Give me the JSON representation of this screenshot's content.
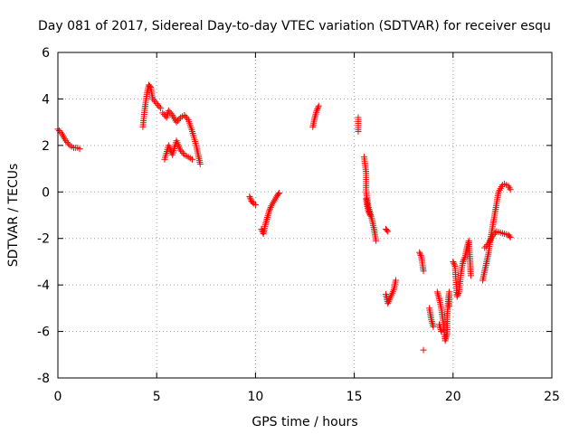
{
  "chart_data": {
    "type": "scatter",
    "title": "Day 081 of 2017, Sidereal Day-to-day VTEC variation (SDTVAR) for receiver esqu",
    "xlabel": "GPS time / hours",
    "ylabel": "SDTVAR / TECUs",
    "xlim": [
      0,
      25
    ],
    "ylim": [
      -8,
      6
    ],
    "x_ticks": [
      "0",
      "5",
      "10",
      "15",
      "20",
      "25"
    ],
    "y_ticks": [
      "-8",
      "-6",
      "-4",
      "-2",
      "0",
      "2",
      "4",
      "6"
    ],
    "grid": true,
    "marker": "plus",
    "color": "#ff0000",
    "segments": [
      [
        [
          0.0,
          2.7
        ],
        [
          0.2,
          2.5
        ],
        [
          0.4,
          2.2
        ],
        [
          0.6,
          2.0
        ],
        [
          0.8,
          1.9
        ],
        [
          1.0,
          1.9
        ],
        [
          1.1,
          1.85
        ]
      ],
      [
        [
          4.3,
          2.8
        ],
        [
          4.4,
          3.6
        ],
        [
          4.5,
          4.2
        ],
        [
          4.6,
          4.6
        ],
        [
          4.7,
          4.5
        ],
        [
          4.8,
          4.0
        ],
        [
          5.0,
          3.8
        ],
        [
          5.2,
          3.6
        ]
      ],
      [
        [
          5.3,
          3.4
        ],
        [
          5.5,
          3.2
        ],
        [
          5.6,
          3.5
        ],
        [
          5.8,
          3.3
        ],
        [
          6.0,
          3.0
        ],
        [
          6.2,
          3.2
        ],
        [
          6.4,
          3.3
        ],
        [
          6.6,
          3.1
        ],
        [
          6.8,
          2.6
        ],
        [
          7.0,
          2.0
        ],
        [
          7.1,
          1.6
        ],
        [
          7.2,
          1.2
        ]
      ],
      [
        [
          5.4,
          1.4
        ],
        [
          5.6,
          2.0
        ],
        [
          5.8,
          1.6
        ],
        [
          6.0,
          2.2
        ],
        [
          6.2,
          1.8
        ],
        [
          6.4,
          1.6
        ],
        [
          6.6,
          1.5
        ],
        [
          6.8,
          1.4
        ]
      ],
      [
        [
          9.7,
          -0.2
        ],
        [
          9.8,
          -0.4
        ],
        [
          9.9,
          -0.5
        ],
        [
          10.0,
          -0.55
        ]
      ],
      [
        [
          10.3,
          -1.6
        ],
        [
          10.4,
          -1.8
        ],
        [
          10.5,
          -1.4
        ],
        [
          10.6,
          -1.1
        ],
        [
          10.7,
          -0.8
        ],
        [
          10.8,
          -0.6
        ],
        [
          11.0,
          -0.3
        ],
        [
          11.1,
          -0.15
        ],
        [
          11.2,
          -0.05
        ]
      ],
      [
        [
          12.9,
          2.8
        ],
        [
          13.0,
          3.2
        ],
        [
          13.1,
          3.5
        ],
        [
          13.2,
          3.7
        ]
      ],
      [
        [
          15.2,
          3.2
        ],
        [
          15.2,
          2.6
        ]
      ],
      [
        [
          15.5,
          1.5
        ],
        [
          15.6,
          0.8
        ],
        [
          15.6,
          0.0
        ],
        [
          15.7,
          -0.6
        ],
        [
          15.8,
          -0.9
        ],
        [
          15.9,
          -1.2
        ],
        [
          16.0,
          -1.6
        ],
        [
          16.1,
          -2.1
        ]
      ],
      [
        [
          15.6,
          -0.3
        ],
        [
          15.7,
          -0.8
        ],
        [
          15.8,
          -1.0
        ]
      ],
      [
        [
          16.6,
          -1.6
        ],
        [
          16.7,
          -1.7
        ]
      ],
      [
        [
          16.6,
          -4.4
        ],
        [
          16.7,
          -4.8
        ],
        [
          17.0,
          -4.2
        ],
        [
          17.1,
          -3.8
        ]
      ],
      [
        [
          18.3,
          -2.6
        ],
        [
          18.4,
          -2.8
        ],
        [
          18.5,
          -3.4
        ]
      ],
      [
        [
          18.5,
          -6.8
        ]
      ],
      [
        [
          18.8,
          -5.0
        ],
        [
          18.9,
          -5.5
        ],
        [
          19.0,
          -5.8
        ]
      ],
      [
        [
          19.2,
          -4.3
        ],
        [
          19.3,
          -4.6
        ],
        [
          19.4,
          -5.0
        ],
        [
          19.5,
          -5.6
        ],
        [
          19.6,
          -6.4
        ],
        [
          19.7,
          -6.1
        ],
        [
          19.7,
          -5.3
        ],
        [
          19.8,
          -4.3
        ],
        [
          19.8,
          -4.9
        ]
      ],
      [
        [
          19.3,
          -5.7
        ],
        [
          19.4,
          -6.0
        ]
      ],
      [
        [
          20.0,
          -3.0
        ],
        [
          20.1,
          -3.2
        ],
        [
          20.2,
          -4.5
        ],
        [
          20.3,
          -4.3
        ],
        [
          20.4,
          -3.5
        ],
        [
          20.5,
          -3.0
        ],
        [
          20.6,
          -2.8
        ],
        [
          20.7,
          -2.4
        ],
        [
          20.8,
          -2.1
        ],
        [
          20.9,
          -3.6
        ]
      ],
      [
        [
          21.5,
          -3.8
        ],
        [
          21.6,
          -3.4
        ],
        [
          21.7,
          -3.0
        ],
        [
          21.8,
          -2.6
        ],
        [
          21.9,
          -2.0
        ],
        [
          22.0,
          -1.5
        ],
        [
          22.1,
          -1.0
        ],
        [
          22.2,
          -0.5
        ],
        [
          22.3,
          0.0
        ],
        [
          22.5,
          0.3
        ],
        [
          22.6,
          0.35
        ],
        [
          22.8,
          0.25
        ],
        [
          22.9,
          0.1
        ]
      ],
      [
        [
          21.6,
          -2.4
        ],
        [
          21.8,
          -2.2
        ],
        [
          22.0,
          -1.9
        ],
        [
          22.2,
          -1.7
        ],
        [
          22.4,
          -1.75
        ],
        [
          22.6,
          -1.8
        ],
        [
          22.8,
          -1.85
        ],
        [
          22.9,
          -1.95
        ]
      ]
    ]
  }
}
